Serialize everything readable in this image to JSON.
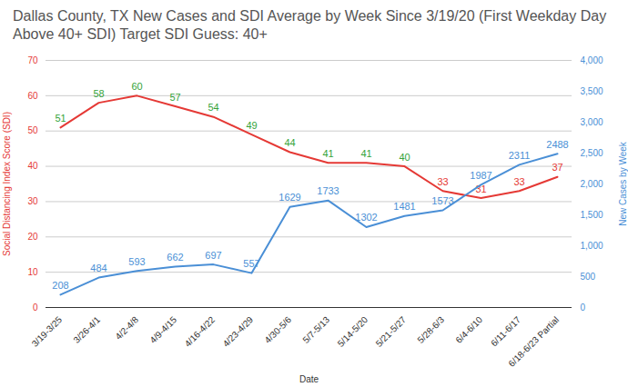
{
  "chart_data": {
    "type": "line",
    "title": "Dallas County, TX New Cases and SDI Average by Week Since 3/19/20 (First Weekday Day Above 40+ SDI) Target SDI Guess: 40+",
    "x_label": "Date",
    "y_label": "Social Distancing Index Score (SDI)",
    "y2_label": "New Cases by Week",
    "categories": [
      "3/19-3/25",
      "3/26-4/1",
      "4/2-4/8",
      "4/9-4/15",
      "4/16-4/22",
      "4/23-4/29",
      "4/30-5/6",
      "5/7-5/13",
      "5/14-5/20",
      "5/21-5/27",
      "5/28-6/3",
      "6/4-6/10",
      "6/11-6/17",
      "6/18-6/23 Partial"
    ],
    "series": [
      {
        "name": "Social Distancing Index Score (SDI)",
        "axis": "y",
        "color": "#e53935",
        "colors": [
          "#34a33a",
          "#34a33a",
          "#34a33a",
          "#34a33a",
          "#34a33a",
          "#34a33a",
          "#34a33a",
          "#34a33a",
          "#34a33a",
          "#34a33a",
          "#e53935",
          "#e53935",
          "#e53935",
          "#e53935"
        ],
        "values": [
          51,
          58,
          60,
          57,
          54,
          49,
          44,
          41,
          41,
          40,
          33,
          31,
          33,
          37
        ]
      },
      {
        "name": "New Cases by Week",
        "axis": "y2",
        "color": "#4a8fd6",
        "values": [
          208,
          484,
          593,
          662,
          697,
          557,
          1629,
          1733,
          1302,
          1481,
          1573,
          1987,
          2311,
          2488
        ]
      }
    ],
    "ylim": [
      0,
      70
    ],
    "yticks": [
      0,
      10,
      20,
      30,
      40,
      50,
      60,
      70
    ],
    "y2lim": [
      0,
      4000
    ],
    "y2ticks": [
      0,
      500,
      1000,
      1500,
      2000,
      2500,
      3000,
      3500,
      4000
    ],
    "grid": true,
    "data_labels": true
  }
}
